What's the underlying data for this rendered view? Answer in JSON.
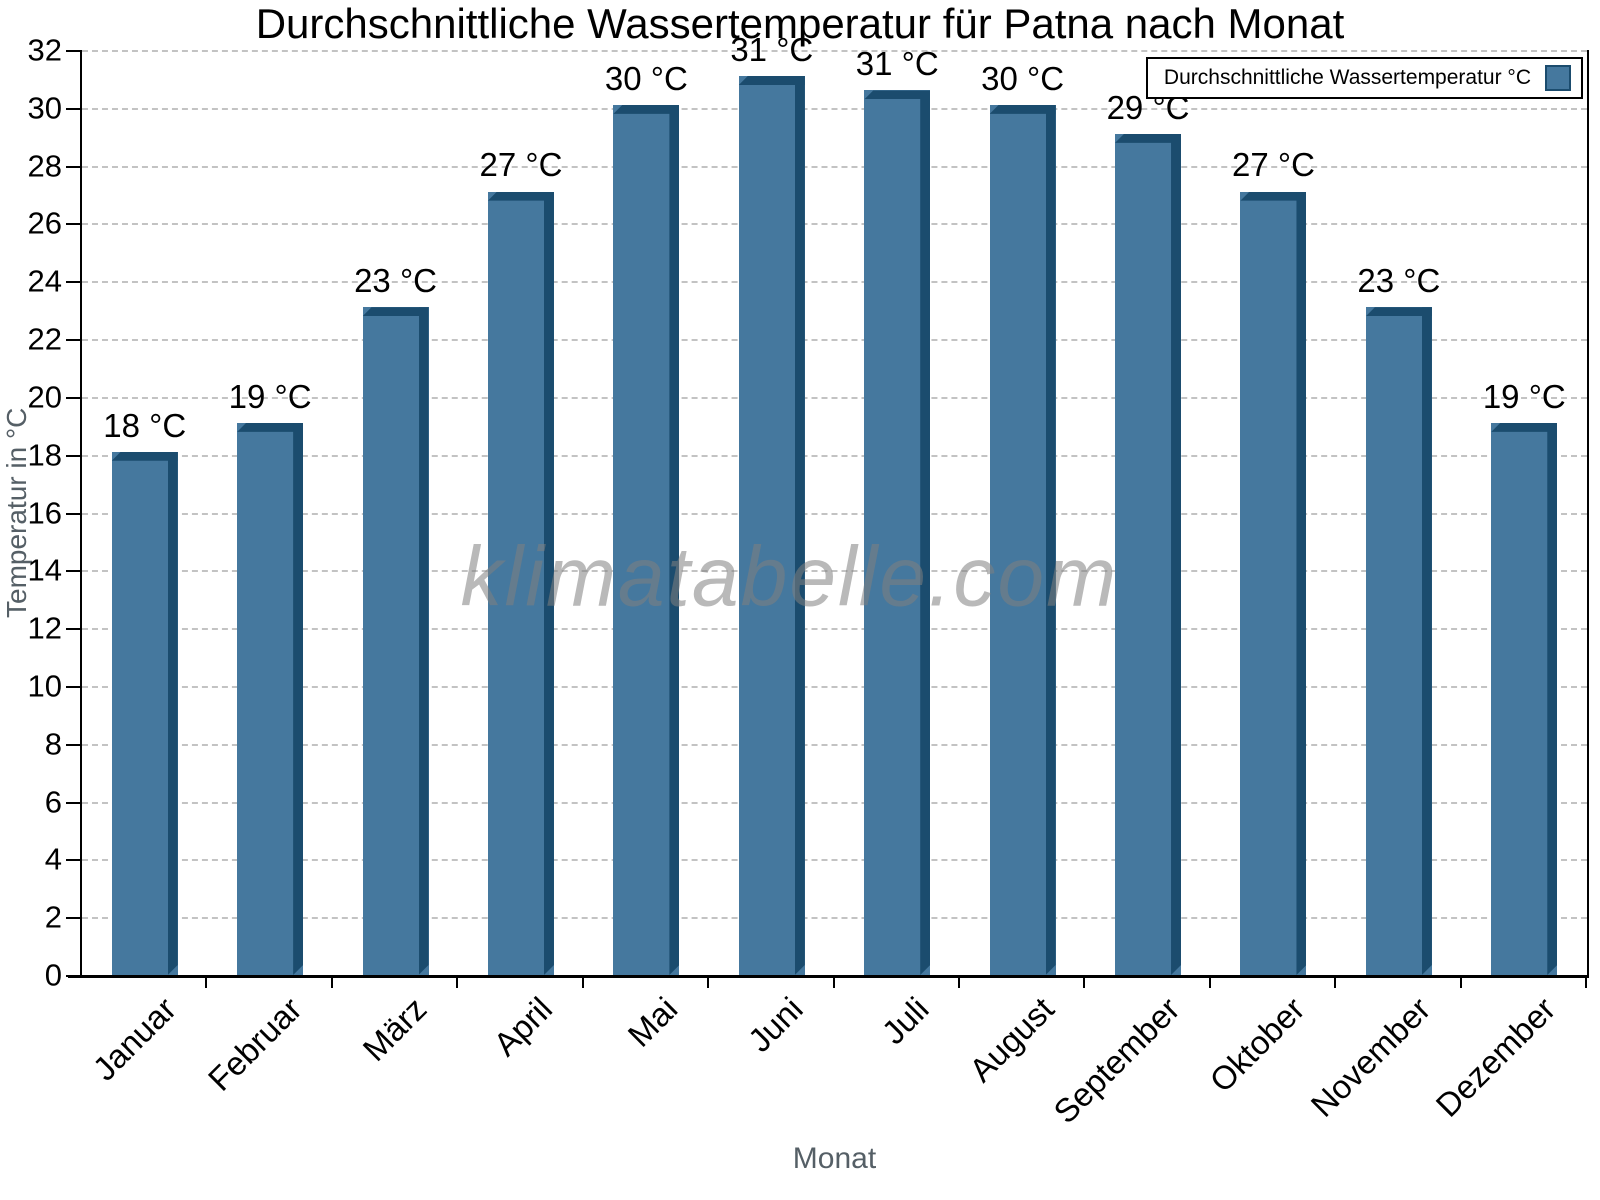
{
  "chart_data": {
    "type": "bar",
    "title": "Durchschnittliche Wassertemperatur für Patna nach Monat",
    "xlabel": "Monat",
    "ylabel": "Temperatur in °C",
    "watermark": "klimatabelle.com",
    "legend": {
      "label": "Durchschnittliche Wassertemperatur °C",
      "position": "top-right"
    },
    "categories": [
      "Januar",
      "Februar",
      "März",
      "April",
      "Mai",
      "Juni",
      "Juli",
      "August",
      "September",
      "Oktober",
      "November",
      "Dezember"
    ],
    "values": [
      18.1,
      19.1,
      23.1,
      27.1,
      30.1,
      31.1,
      30.6,
      30.1,
      29.1,
      27.1,
      23.1,
      19.1
    ],
    "bar_labels": [
      "18 °C",
      "19 °C",
      "23 °C",
      "27 °C",
      "30 °C",
      "31 °C",
      "31 °C",
      "30 °C",
      "29 °C",
      "27 °C",
      "23 °C",
      "19 °C"
    ],
    "ylim": [
      0,
      32
    ],
    "ytick_step": 2,
    "grid": "horizontal-dashed",
    "legend_position": "top-right",
    "colors": {
      "bar_face": "#45789E",
      "bar_edge": "#1B4C6E",
      "grid_line": "#C3C3C3",
      "axis_line": "#000000",
      "text": "#000000",
      "axis_title_text": "#555F66",
      "watermark_text": "rgba(128,128,128,0.55)"
    }
  }
}
